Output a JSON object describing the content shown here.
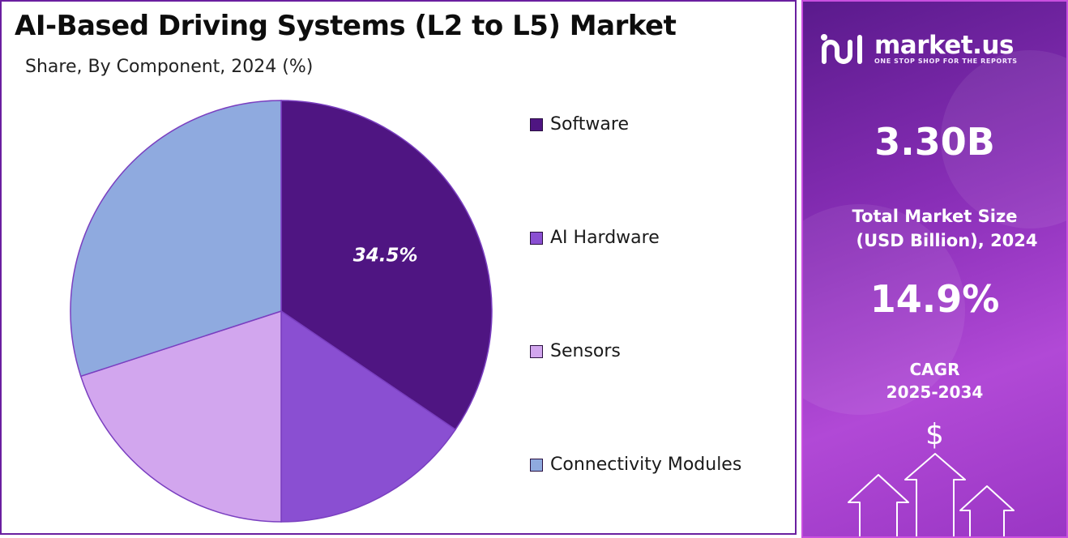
{
  "chart_data": {
    "type": "pie",
    "title": "AI-Based Driving Systems (L2 to L5) Market",
    "subtitle": "Share, By Component, 2024 (%)",
    "categories": [
      "Software",
      "AI Hardware",
      "Sensors",
      "Connectivity Modules"
    ],
    "values": [
      34.5,
      15.5,
      20.0,
      30.0
    ],
    "colors": [
      "#4f1582",
      "#8a4fd2",
      "#d2a6ee",
      "#8faadf"
    ],
    "data_labels": [
      "34.5%",
      "",
      "",
      ""
    ],
    "legend_position": "right",
    "start_angle_deg": 0,
    "direction": "clockwise"
  },
  "info_panel": {
    "brand": {
      "name": "market.us",
      "tagline": "ONE STOP SHOP FOR THE REPORTS",
      "logo_icon": "market-us-logo-icon"
    },
    "market_size": {
      "value": "3.30B",
      "label_line1": "Total Market Size",
      "label_line2": "(USD Billion), 2024"
    },
    "cagr": {
      "value": "14.9%",
      "label_line1": "CAGR",
      "label_line2": "2025-2034"
    },
    "currency_symbol": "$",
    "colors": {
      "accent": "#8a2fb8",
      "border": "#c94fe0"
    }
  }
}
